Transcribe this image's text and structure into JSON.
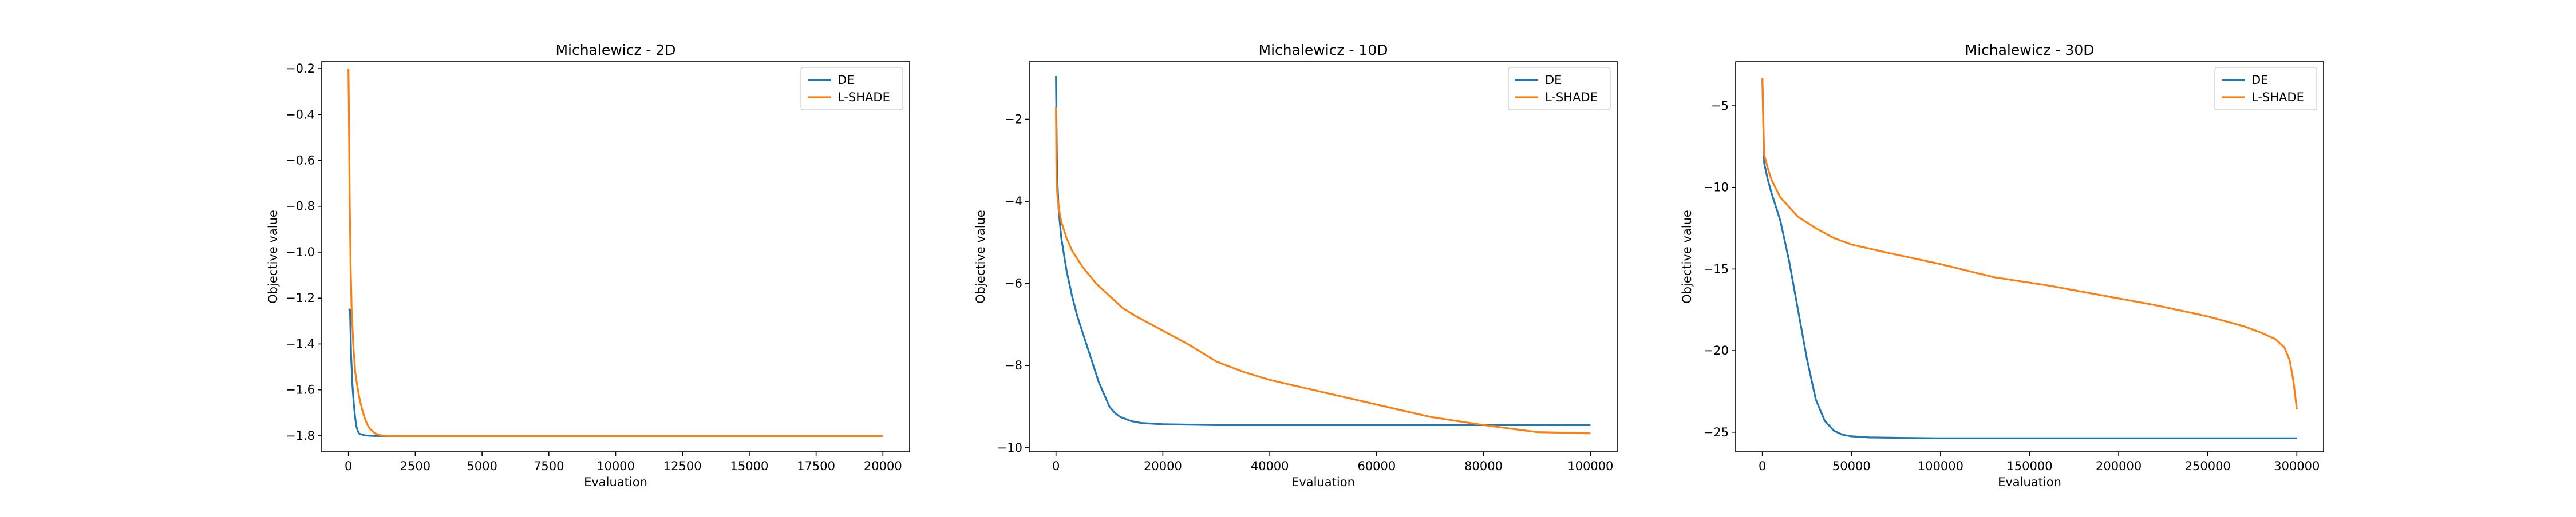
{
  "figure": {
    "background": "#ffffff"
  },
  "series_colors": {
    "DE": "#1f77b4",
    "L-SHADE": "#ff7f0e"
  },
  "chart_data": [
    {
      "type": "line",
      "title": "Michalewicz - 2D",
      "xlabel": "Evaluation",
      "ylabel": "Objective value",
      "xlim": [
        -1000,
        21000
      ],
      "ylim": [
        -1.87,
        -0.17
      ],
      "xticks": [
        0,
        2500,
        5000,
        7500,
        10000,
        12500,
        15000,
        17500,
        20000
      ],
      "xtick_labels": [
        "0",
        "2500",
        "5000",
        "7500",
        "10000",
        "12500",
        "15000",
        "17500",
        "20000"
      ],
      "yticks": [
        -1.8,
        -1.6,
        -1.4,
        -1.2,
        -1.0,
        -0.8,
        -0.6,
        -0.4,
        -0.2
      ],
      "ytick_labels": [
        "−1.8",
        "−1.6",
        "−1.4",
        "−1.2",
        "−1.0",
        "−0.8",
        "−0.6",
        "−0.4",
        "−0.2"
      ],
      "grid": false,
      "legend": {
        "location": "top-right",
        "entries": [
          "DE",
          "L-SHADE"
        ]
      },
      "series": [
        {
          "name": "DE",
          "color": "#1f77b4",
          "x": [
            0,
            60,
            100,
            150,
            200,
            250,
            300,
            350,
            400,
            500,
            600,
            800,
            1000,
            20000
          ],
          "y": [
            -1.25,
            -1.25,
            -1.45,
            -1.58,
            -1.66,
            -1.72,
            -1.76,
            -1.78,
            -1.79,
            -1.795,
            -1.798,
            -1.8,
            -1.801,
            -1.801
          ]
        },
        {
          "name": "L-SHADE",
          "color": "#ff7f0e",
          "x": [
            0,
            15,
            30,
            50,
            80,
            120,
            180,
            250,
            300,
            400,
            500,
            600,
            700,
            800,
            1000,
            1200,
            1500,
            20000
          ],
          "y": [
            -0.2,
            -0.35,
            -0.55,
            -0.8,
            -1.05,
            -1.25,
            -1.4,
            -1.52,
            -1.56,
            -1.63,
            -1.68,
            -1.72,
            -1.75,
            -1.77,
            -1.79,
            -1.798,
            -1.801,
            -1.801
          ]
        }
      ]
    },
    {
      "type": "line",
      "title": "Michalewicz - 10D",
      "xlabel": "Evaluation",
      "ylabel": "Objective value",
      "xlim": [
        -5000,
        105000
      ],
      "ylim": [
        -10.1,
        -0.6
      ],
      "xticks": [
        0,
        20000,
        40000,
        60000,
        80000,
        100000
      ],
      "xtick_labels": [
        "0",
        "20000",
        "40000",
        "60000",
        "80000",
        "100000"
      ],
      "yticks": [
        -10,
        -8,
        -6,
        -4,
        -2
      ],
      "ytick_labels": [
        "−10",
        "−8",
        "−6",
        "−4",
        "−2"
      ],
      "grid": false,
      "legend": {
        "location": "top-right",
        "entries": [
          "DE",
          "L-SHADE"
        ]
      },
      "series": [
        {
          "name": "DE",
          "color": "#1f77b4",
          "x": [
            0,
            200,
            500,
            1000,
            1500,
            2000,
            3000,
            4000,
            5000,
            6000,
            7000,
            8000,
            9000,
            10000,
            11000,
            12000,
            14000,
            16000,
            20000,
            30000,
            100000
          ],
          "y": [
            -0.95,
            -3.3,
            -4.2,
            -4.9,
            -5.3,
            -5.7,
            -6.3,
            -6.8,
            -7.2,
            -7.6,
            -8.0,
            -8.4,
            -8.7,
            -9.0,
            -9.15,
            -9.25,
            -9.35,
            -9.4,
            -9.43,
            -9.45,
            -9.45
          ]
        },
        {
          "name": "L-SHADE",
          "color": "#ff7f0e",
          "x": [
            0,
            100,
            300,
            700,
            1000,
            2000,
            3000,
            5000,
            7500,
            10000,
            12500,
            15000,
            20000,
            25000,
            30000,
            35000,
            40000,
            45000,
            50000,
            60000,
            70000,
            80000,
            90000,
            100000
          ],
          "y": [
            -1.7,
            -3.5,
            -3.9,
            -4.3,
            -4.5,
            -4.9,
            -5.2,
            -5.6,
            -6.0,
            -6.3,
            -6.6,
            -6.8,
            -7.15,
            -7.5,
            -7.9,
            -8.15,
            -8.35,
            -8.5,
            -8.65,
            -8.95,
            -9.25,
            -9.45,
            -9.62,
            -9.65
          ]
        }
      ]
    },
    {
      "type": "line",
      "title": "Michalewicz - 30D",
      "xlabel": "Evaluation",
      "ylabel": "Objective value",
      "xlim": [
        -15000,
        315000
      ],
      "ylim": [
        -26.2,
        -2.3
      ],
      "xticks": [
        0,
        50000,
        100000,
        150000,
        200000,
        250000,
        300000
      ],
      "xtick_labels": [
        "0",
        "50000",
        "100000",
        "150000",
        "200000",
        "250000",
        "300000"
      ],
      "yticks": [
        -25,
        -20,
        -15,
        -10,
        -5
      ],
      "ytick_labels": [
        "−25",
        "−20",
        "−15",
        "−10",
        "−5"
      ],
      "grid": false,
      "legend": {
        "location": "top-right",
        "entries": [
          "DE",
          "L-SHADE"
        ]
      },
      "series": [
        {
          "name": "DE",
          "color": "#1f77b4",
          "x": [
            0,
            1000,
            3000,
            5000,
            10000,
            15000,
            20000,
            25000,
            30000,
            35000,
            40000,
            45000,
            50000,
            60000,
            80000,
            100000,
            300000
          ],
          "y": [
            -3.3,
            -8.5,
            -9.5,
            -10.3,
            -12.0,
            -14.5,
            -17.5,
            -20.5,
            -23.0,
            -24.3,
            -24.9,
            -25.15,
            -25.25,
            -25.32,
            -25.35,
            -25.37,
            -25.37
          ]
        },
        {
          "name": "L-SHADE",
          "color": "#ff7f0e",
          "x": [
            0,
            1000,
            3000,
            5000,
            10000,
            20000,
            30000,
            40000,
            50000,
            70000,
            100000,
            130000,
            160000,
            190000,
            220000,
            250000,
            270000,
            280000,
            288000,
            293000,
            296000,
            298000,
            300000
          ],
          "y": [
            -3.3,
            -8.0,
            -8.8,
            -9.5,
            -10.6,
            -11.8,
            -12.5,
            -13.1,
            -13.5,
            -14.0,
            -14.7,
            -15.5,
            -16.0,
            -16.6,
            -17.2,
            -17.9,
            -18.5,
            -18.9,
            -19.3,
            -19.8,
            -20.6,
            -21.8,
            -23.6
          ]
        }
      ]
    }
  ]
}
